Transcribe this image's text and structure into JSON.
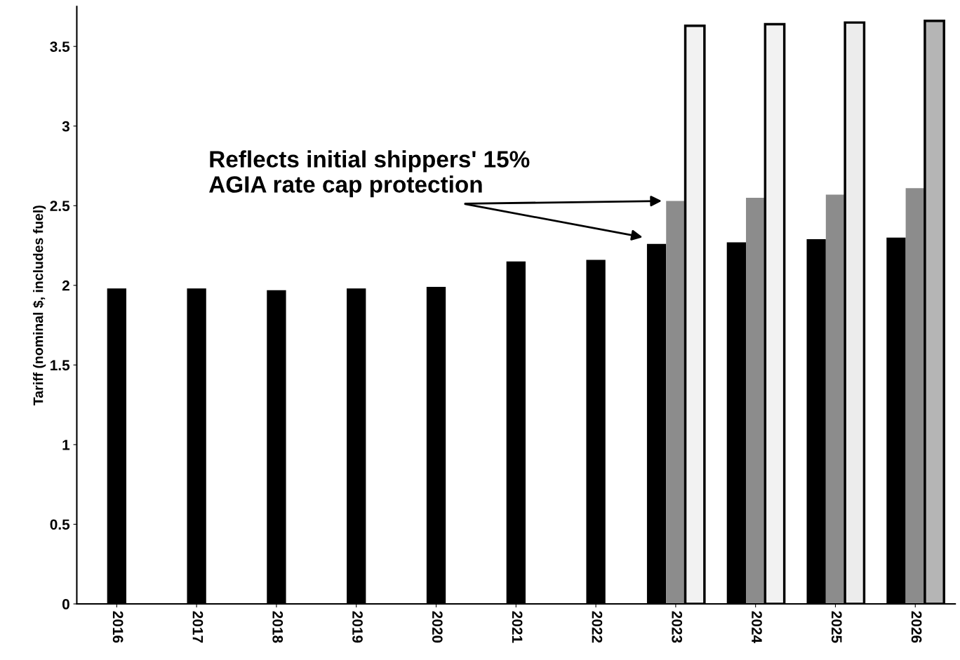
{
  "chart_data": {
    "type": "bar",
    "ylabel": "Tariff (nominal $, includes fuel)",
    "categories": [
      "2016",
      "2017",
      "2018",
      "2019",
      "2020",
      "2021",
      "2022",
      "2023",
      "2024",
      "2025",
      "2026"
    ],
    "series": [
      {
        "color": "#000000",
        "values": [
          1.98,
          1.98,
          1.97,
          1.98,
          1.99,
          2.15,
          2.16,
          2.26,
          2.27,
          2.29,
          2.3
        ]
      },
      {
        "color": "#8c8c8c",
        "values": [
          null,
          null,
          null,
          null,
          null,
          null,
          null,
          2.53,
          2.55,
          2.57,
          2.61
        ]
      },
      {
        "colors": [
          null,
          null,
          null,
          null,
          null,
          null,
          null,
          "#f2f2f2",
          "#f2f2f2",
          "#ececec",
          "#b5b5b5"
        ],
        "values": [
          null,
          null,
          null,
          null,
          null,
          null,
          null,
          3.63,
          3.64,
          3.65,
          3.66
        ]
      }
    ],
    "ylim": [
      0,
      3.75
    ],
    "yticks": [
      0,
      0.5,
      1,
      1.5,
      2,
      2.5,
      3,
      3.5
    ],
    "annotations": [
      "Reflects initial shippers' 15%\nAGIA rate cap protection"
    ],
    "grid": false,
    "legend": false
  }
}
